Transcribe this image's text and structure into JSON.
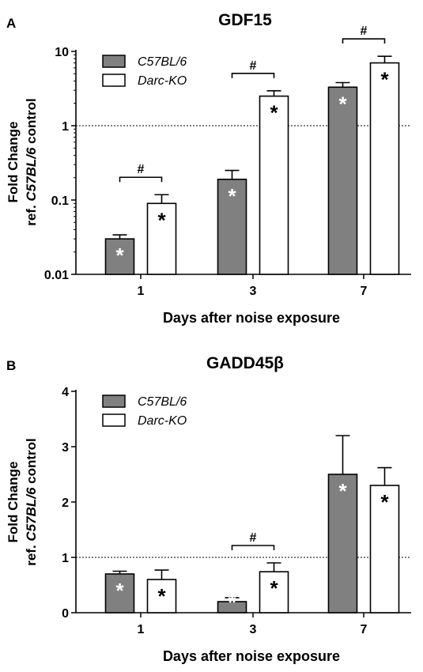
{
  "chart_data": [
    {
      "panel_letter": "A",
      "type": "bar",
      "title": "GDF15",
      "ylabel_line1": "Fold Change",
      "ylabel_line2_prefix": "ref. ",
      "ylabel_line2_italic": "C57BL/6",
      "ylabel_line2_suffix": " control",
      "xlabel": "Days after noise exposure",
      "categories": [
        "1",
        "3",
        "7"
      ],
      "yscale": "log",
      "ylim": [
        0.01,
        10
      ],
      "yticks": [
        0.01,
        0.1,
        1,
        10
      ],
      "ytick_labels": [
        "0.01",
        "0.1",
        "1",
        "10"
      ],
      "reference_line": 1,
      "legend_position": "top-left",
      "series": [
        {
          "name": "C57BL/6",
          "color": "#808080",
          "values": [
            0.03,
            0.19,
            3.3
          ],
          "errors": [
            0.034,
            0.25,
            3.8
          ],
          "star_color": "#ffffff"
        },
        {
          "name": "Darc-KO",
          "color": "#ffffff",
          "values": [
            0.09,
            2.5,
            7.0
          ],
          "errors": [
            0.118,
            2.95,
            8.6
          ],
          "star_color": "#000000"
        }
      ],
      "significance": [
        {
          "category": "1",
          "label": "#"
        },
        {
          "category": "3",
          "label": "#"
        },
        {
          "category": "7",
          "label": "#"
        }
      ],
      "star_label": "*"
    },
    {
      "panel_letter": "B",
      "type": "bar",
      "title": "GADD45β",
      "ylabel_line1": "Fold Change",
      "ylabel_line2_prefix": "ref. ",
      "ylabel_line2_italic": "C57BL/6",
      "ylabel_line2_suffix": " control",
      "xlabel": "Days after noise exposure",
      "categories": [
        "1",
        "3",
        "7"
      ],
      "yscale": "linear",
      "ylim": [
        0,
        4
      ],
      "yticks": [
        0,
        1,
        2,
        3,
        4
      ],
      "ytick_labels": [
        "0",
        "1",
        "2",
        "3",
        "4"
      ],
      "reference_line": 1,
      "legend_position": "top-left",
      "series": [
        {
          "name": "C57BL/6",
          "color": "#808080",
          "values": [
            0.7,
            0.2,
            2.5
          ],
          "errors": [
            0.75,
            0.27,
            3.2
          ],
          "star_color": "#ffffff"
        },
        {
          "name": "Darc-KO",
          "color": "#ffffff",
          "values": [
            0.6,
            0.74,
            2.3
          ],
          "errors": [
            0.77,
            0.9,
            2.62
          ],
          "star_color": "#000000"
        }
      ],
      "significance": [
        {
          "category": "3",
          "label": "#"
        }
      ],
      "star_label": "*"
    }
  ]
}
